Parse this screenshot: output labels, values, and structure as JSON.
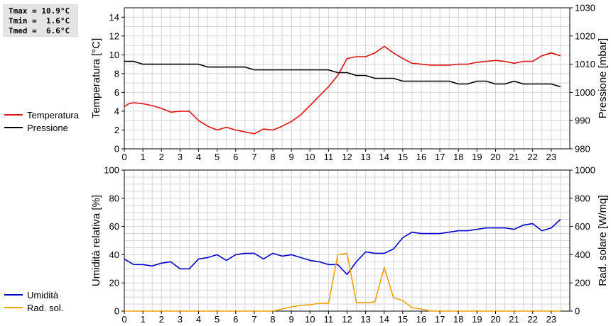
{
  "stats": {
    "tmax": "Tmax = 10.9°C",
    "tmin": "Tmin =  1.6°C",
    "tmed": "Tmed =  6.6°C"
  },
  "colors": {
    "red": "#dd1111",
    "black": "#000000",
    "blue": "#0000cc",
    "orange": "#f5a000",
    "grid": "#d4d4d4"
  },
  "chart_data": [
    {
      "type": "line",
      "x_ticks": [
        "0",
        "1",
        "2",
        "3",
        "4",
        "5",
        "6",
        "7",
        "8",
        "9",
        "10",
        "11",
        "12",
        "13",
        "14",
        "15",
        "16",
        "17",
        "18",
        "19",
        "20",
        "21",
        "22",
        "23"
      ],
      "ylabel_left": "Temperatura [°C]",
      "ylabel_right": "Pressione [mbar]",
      "ylim_left": [
        0,
        15
      ],
      "yticks_left": [
        "0",
        "2",
        "4",
        "6",
        "8",
        "10",
        "12",
        "14"
      ],
      "ylim_right": [
        980,
        1030
      ],
      "yticks_right": [
        "980",
        "990",
        "1000",
        "1010",
        "1020",
        "1030"
      ],
      "grid": true,
      "series": [
        {
          "name": "Temperatura",
          "axis": "left",
          "color": "#dd1111",
          "x": [
            0,
            0.25,
            0.5,
            1,
            1.5,
            2,
            2.5,
            3,
            3.5,
            4,
            4.5,
            5,
            5.5,
            6,
            6.5,
            7,
            7.5,
            8,
            8.5,
            9,
            9.5,
            10,
            10.5,
            11,
            11.5,
            12,
            12.5,
            13,
            13.5,
            14,
            14.5,
            15,
            15.5,
            16,
            16.5,
            17,
            17.5,
            18,
            18.5,
            19,
            19.5,
            20,
            20.5,
            21,
            21.5,
            22,
            22.5,
            23,
            23.5
          ],
          "y": [
            4.5,
            4.8,
            4.9,
            4.8,
            4.6,
            4.3,
            3.9,
            4.0,
            4.0,
            3.0,
            2.4,
            2.0,
            2.3,
            2.0,
            1.8,
            1.6,
            2.1,
            2.0,
            2.4,
            2.9,
            3.6,
            4.6,
            5.6,
            6.6,
            7.8,
            9.6,
            9.8,
            9.8,
            10.2,
            10.9,
            10.2,
            9.6,
            9.1,
            9.0,
            8.9,
            8.9,
            8.9,
            9.0,
            9.0,
            9.2,
            9.3,
            9.4,
            9.3,
            9.1,
            9.3,
            9.3,
            9.9,
            10.2,
            9.9
          ]
        },
        {
          "name": "Pressione",
          "axis": "right",
          "color": "#000000",
          "x": [
            0,
            0.5,
            1,
            1.5,
            2,
            2.5,
            3,
            3.5,
            4,
            4.5,
            5,
            5.5,
            6,
            6.5,
            7,
            7.5,
            8,
            8.5,
            9,
            9.5,
            10,
            10.5,
            11,
            11.5,
            12,
            12.5,
            13,
            13.5,
            14,
            14.5,
            15,
            15.5,
            16,
            16.5,
            17,
            17.5,
            18,
            18.5,
            19,
            19.5,
            20,
            20.5,
            21,
            21.5,
            22,
            22.5,
            23,
            23.5
          ],
          "y": [
            1011,
            1011,
            1010,
            1010,
            1010,
            1010,
            1010,
            1010,
            1010,
            1009,
            1009,
            1009,
            1009,
            1009,
            1008,
            1008,
            1008,
            1008,
            1008,
            1008,
            1008,
            1008,
            1008,
            1007,
            1007,
            1006,
            1006,
            1005,
            1005,
            1005,
            1004,
            1004,
            1004,
            1004,
            1004,
            1004,
            1003,
            1003,
            1004,
            1004,
            1003,
            1003,
            1004,
            1003,
            1003,
            1003,
            1003,
            1002
          ]
        }
      ]
    },
    {
      "type": "line",
      "x_ticks": [
        "0",
        "1",
        "2",
        "3",
        "4",
        "5",
        "6",
        "7",
        "8",
        "9",
        "10",
        "11",
        "12",
        "13",
        "14",
        "15",
        "16",
        "17",
        "18",
        "19",
        "20",
        "21",
        "22",
        "23"
      ],
      "ylabel_left": "Umidità relativa [%]",
      "ylabel_right": "Rad. solare [W/mq]",
      "ylim_left": [
        0,
        100
      ],
      "yticks_left": [
        "0",
        "20",
        "40",
        "60",
        "80",
        "100"
      ],
      "ylim_right": [
        0,
        1000
      ],
      "yticks_right": [
        "0",
        "200",
        "400",
        "600",
        "800",
        "1000"
      ],
      "grid": true,
      "series": [
        {
          "name": "Umidità",
          "axis": "left",
          "color": "#0000cc",
          "x": [
            0,
            0.5,
            1,
            1.5,
            2,
            2.5,
            3,
            3.5,
            4,
            4.5,
            5,
            5.5,
            6,
            6.5,
            7,
            7.5,
            8,
            8.5,
            9,
            9.5,
            10,
            10.5,
            11,
            11.5,
            12,
            12.5,
            13,
            13.5,
            14,
            14.5,
            15,
            15.5,
            16,
            16.5,
            17,
            17.5,
            18,
            18.5,
            19,
            19.5,
            20,
            20.5,
            21,
            21.5,
            22,
            22.5,
            23,
            23.5
          ],
          "y": [
            37,
            33,
            33,
            32,
            34,
            35,
            30,
            30,
            37,
            38,
            40,
            36,
            40,
            41,
            41,
            37,
            41,
            39,
            40,
            38,
            36,
            35,
            33,
            33,
            26,
            35,
            42,
            41,
            41,
            44,
            52,
            56,
            55,
            55,
            55,
            56,
            57,
            57,
            58,
            59,
            59,
            59,
            58,
            61,
            62,
            57,
            59,
            65
          ]
        },
        {
          "name": "Rad. sol.",
          "axis": "right",
          "color": "#f5a000",
          "x": [
            0,
            1,
            2,
            3,
            4,
            5,
            6,
            7,
            8,
            8.5,
            9,
            9.5,
            10,
            10.5,
            11,
            11.5,
            12,
            12.5,
            13,
            13.5,
            14,
            14.5,
            15,
            15.5,
            16,
            16.5,
            17,
            18,
            19,
            20,
            21,
            22,
            23,
            23.5
          ],
          "y": [
            0,
            0,
            0,
            0,
            0,
            0,
            0,
            0,
            0,
            15,
            30,
            40,
            45,
            55,
            55,
            400,
            410,
            60,
            60,
            65,
            310,
            95,
            75,
            25,
            15,
            0,
            0,
            0,
            0,
            0,
            0,
            0,
            0,
            0
          ]
        }
      ]
    }
  ]
}
